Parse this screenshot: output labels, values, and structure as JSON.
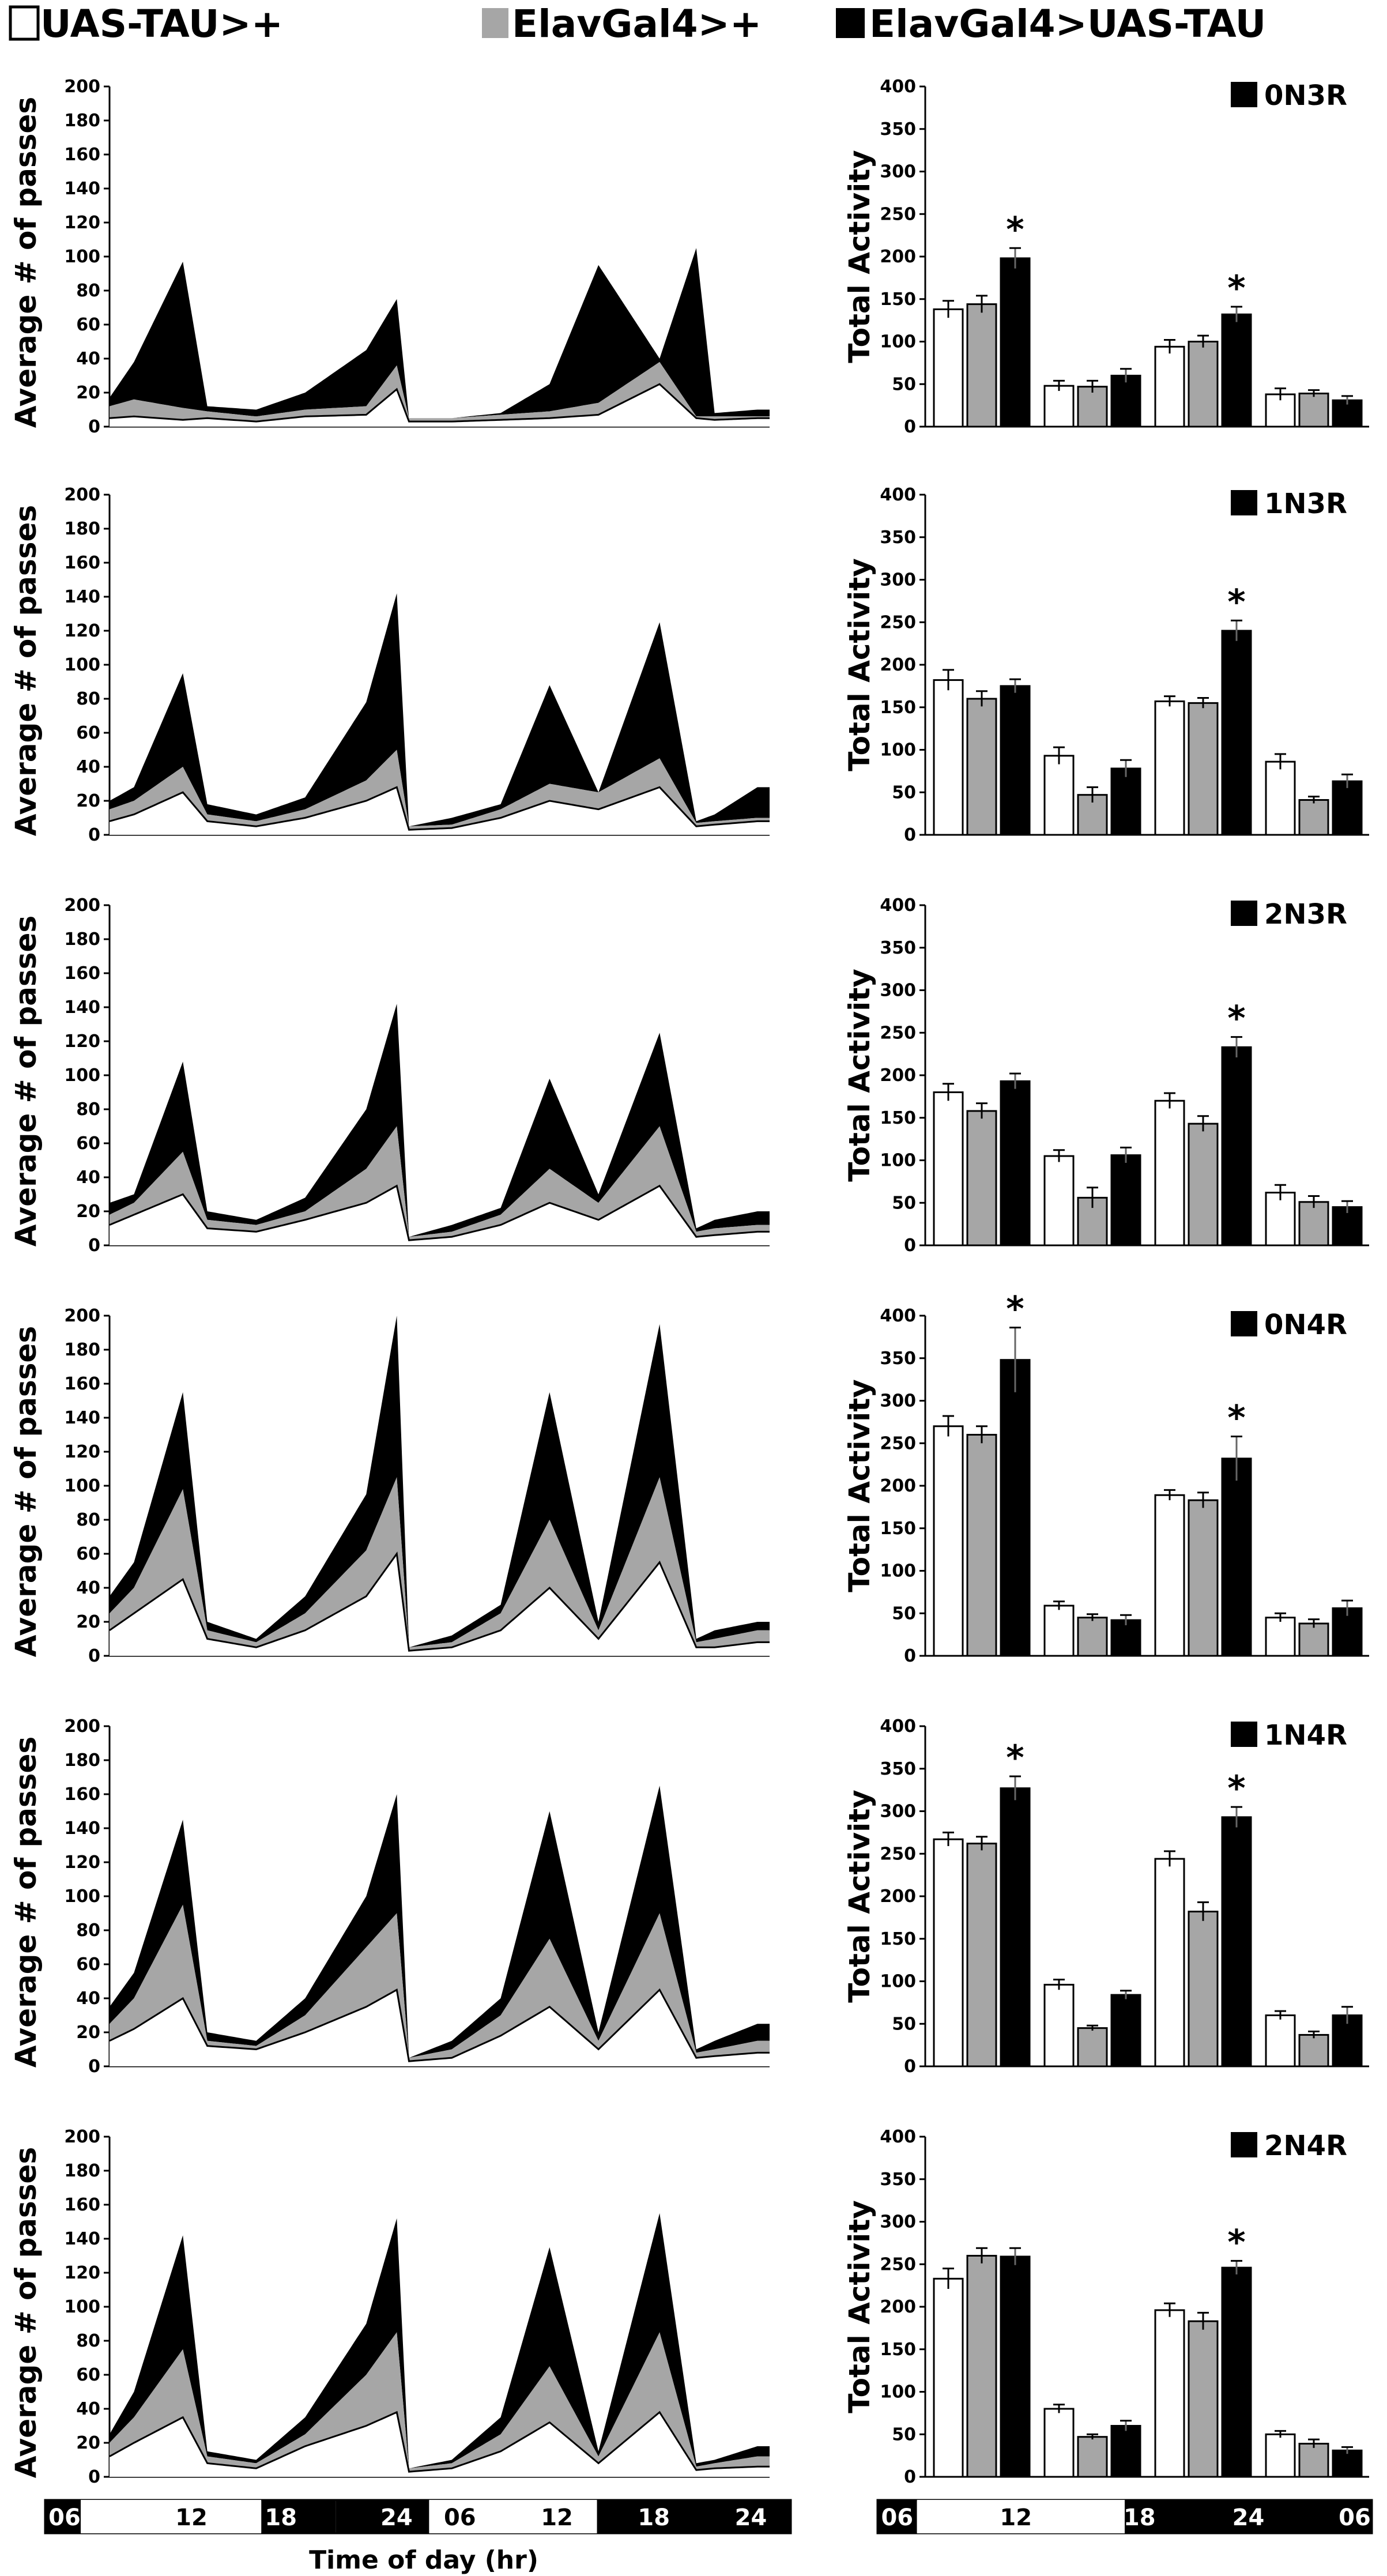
{
  "legend": {
    "items": [
      {
        "label": "UAS-TAU>+",
        "color": "#ffffff"
      },
      {
        "label": "ElavGal4>+",
        "color": "#a6a6a6"
      },
      {
        "label": "ElavGal4>UAS-TAU",
        "color": "#000000"
      }
    ]
  },
  "line_yaxis_title": "Average # of passes",
  "bar_yaxis_title": "Total Activity",
  "line_xaxis_title": "Time of day (hr)",
  "line_time_labels": [
    "06",
    "12",
    "18",
    "24",
    "06",
    "12",
    "18",
    "24"
  ],
  "bar_time_labels": [
    "06",
    "12",
    "18",
    "24",
    "06"
  ],
  "line_yticks": [
    0,
    20,
    40,
    60,
    80,
    100,
    120,
    140,
    160,
    180,
    200
  ],
  "bar_yticks": [
    0,
    50,
    100,
    150,
    200,
    250,
    300,
    350,
    400
  ],
  "colors": {
    "white_fill": "#ffffff",
    "gray_fill": "#a6a6a6",
    "black_fill": "#000000"
  },
  "chart_data": [
    {
      "panel": "0N3R",
      "line": {
        "type": "area",
        "ylim": [
          0,
          200
        ],
        "xlim": [
          6,
          54
        ],
        "ylabel": "Average # of passes",
        "baseline": [
          5,
          6,
          4,
          5,
          3,
          6,
          7,
          22,
          3,
          3,
          4,
          5,
          7,
          25,
          5,
          4,
          5
        ],
        "gray_top": [
          12,
          16,
          11,
          9,
          6,
          10,
          12,
          36,
          5,
          5,
          7,
          9,
          14,
          38,
          6,
          6,
          6
        ],
        "black_top": [
          17,
          38,
          97,
          12,
          10,
          20,
          45,
          75,
          5,
          5,
          8,
          25,
          95,
          40,
          105,
          8,
          10
        ]
      },
      "bar": {
        "type": "bar",
        "categories": [
          "day",
          "night",
          "day",
          "night"
        ],
        "ylim": [
          0,
          400
        ],
        "ylabel": "Total Activity",
        "series": [
          {
            "name": "UAS-TAU>+",
            "values": [
              138,
              48,
              94,
              38
            ],
            "errors": [
              10,
              6,
              8,
              7
            ]
          },
          {
            "name": "ElavGal4>+",
            "values": [
              144,
              47,
              100,
              39
            ],
            "errors": [
              10,
              7,
              7,
              4
            ]
          },
          {
            "name": "ElavGal4>UAS-TAU",
            "values": [
              198,
              60,
              132,
              31
            ],
            "errors": [
              12,
              8,
              9,
              5
            ]
          }
        ],
        "significance": [
          [
            false,
            false,
            true
          ],
          [
            false,
            false,
            false
          ],
          [
            false,
            false,
            true
          ],
          [
            false,
            false,
            false
          ]
        ]
      }
    },
    {
      "panel": "1N3R",
      "line": {
        "type": "area",
        "ylim": [
          0,
          200
        ],
        "xlim": [
          6,
          54
        ],
        "ylabel": "Average # of passes",
        "baseline": [
          8,
          12,
          25,
          8,
          5,
          10,
          20,
          28,
          3,
          4,
          10,
          20,
          15,
          28,
          5,
          6,
          8
        ],
        "gray_top": [
          15,
          20,
          40,
          12,
          8,
          15,
          32,
          50,
          5,
          6,
          15,
          30,
          25,
          45,
          7,
          8,
          10
        ],
        "black_top": [
          20,
          28,
          95,
          18,
          12,
          22,
          78,
          142,
          5,
          10,
          18,
          88,
          25,
          125,
          8,
          12,
          28
        ]
      },
      "bar": {
        "type": "bar",
        "categories": [
          "day",
          "night",
          "day",
          "night"
        ],
        "ylim": [
          0,
          400
        ],
        "ylabel": "Total Activity",
        "series": [
          {
            "name": "UAS-TAU>+",
            "values": [
              182,
              93,
              157,
              86
            ],
            "errors": [
              12,
              10,
              6,
              9
            ]
          },
          {
            "name": "ElavGal4>+",
            "values": [
              160,
              47,
              155,
              41
            ],
            "errors": [
              9,
              9,
              6,
              4
            ]
          },
          {
            "name": "ElavGal4>UAS-TAU",
            "values": [
              175,
              78,
              240,
              63
            ],
            "errors": [
              8,
              10,
              12,
              8
            ]
          }
        ],
        "significance": [
          [
            false,
            false,
            false
          ],
          [
            false,
            false,
            false
          ],
          [
            false,
            false,
            true
          ],
          [
            false,
            false,
            false
          ]
        ]
      }
    },
    {
      "panel": "2N3R",
      "line": {
        "type": "area",
        "ylim": [
          0,
          200
        ],
        "xlim": [
          6,
          54
        ],
        "ylabel": "Average # of passes",
        "baseline": [
          12,
          18,
          30,
          10,
          8,
          15,
          25,
          35,
          3,
          5,
          12,
          25,
          15,
          35,
          5,
          6,
          8
        ],
        "gray_top": [
          18,
          25,
          55,
          15,
          12,
          20,
          45,
          70,
          5,
          8,
          18,
          45,
          25,
          70,
          8,
          10,
          12
        ],
        "black_top": [
          25,
          30,
          108,
          20,
          15,
          28,
          80,
          142,
          5,
          12,
          22,
          98,
          30,
          125,
          10,
          15,
          20
        ]
      },
      "bar": {
        "type": "bar",
        "categories": [
          "day",
          "night",
          "day",
          "night"
        ],
        "ylim": [
          0,
          400
        ],
        "ylabel": "Total Activity",
        "series": [
          {
            "name": "UAS-TAU>+",
            "values": [
              180,
              105,
              170,
              62
            ],
            "errors": [
              10,
              7,
              9,
              9
            ]
          },
          {
            "name": "ElavGal4>+",
            "values": [
              158,
              56,
              143,
              51
            ],
            "errors": [
              9,
              12,
              9,
              7
            ]
          },
          {
            "name": "ElavGal4>UAS-TAU",
            "values": [
              193,
              106,
              233,
              45
            ],
            "errors": [
              9,
              9,
              12,
              7
            ]
          }
        ],
        "significance": [
          [
            false,
            false,
            false
          ],
          [
            false,
            false,
            false
          ],
          [
            false,
            false,
            true
          ],
          [
            false,
            false,
            false
          ]
        ]
      }
    },
    {
      "panel": "0N4R",
      "line": {
        "type": "area",
        "ylim": [
          0,
          200
        ],
        "xlim": [
          6,
          54
        ],
        "ylabel": "Average # of passes",
        "baseline": [
          15,
          25,
          45,
          10,
          5,
          15,
          35,
          60,
          3,
          5,
          15,
          40,
          10,
          55,
          5,
          5,
          8
        ],
        "gray_top": [
          25,
          40,
          98,
          15,
          8,
          25,
          62,
          105,
          5,
          8,
          25,
          80,
          15,
          105,
          8,
          10,
          15
        ],
        "black_top": [
          35,
          55,
          155,
          20,
          10,
          35,
          95,
          200,
          5,
          12,
          30,
          155,
          20,
          195,
          10,
          15,
          20
        ]
      },
      "bar": {
        "type": "bar",
        "categories": [
          "day",
          "night",
          "day",
          "night"
        ],
        "ylim": [
          0,
          400
        ],
        "ylabel": "Total Activity",
        "series": [
          {
            "name": "UAS-TAU>+",
            "values": [
              270,
              59,
              189,
              45
            ],
            "errors": [
              12,
              5,
              6,
              5
            ]
          },
          {
            "name": "ElavGal4>+",
            "values": [
              260,
              45,
              183,
              38
            ],
            "errors": [
              10,
              4,
              9,
              5
            ]
          },
          {
            "name": "ElavGal4>UAS-TAU",
            "values": [
              348,
              42,
              232,
              56
            ],
            "errors": [
              38,
              6,
              26,
              9
            ]
          }
        ],
        "significance": [
          [
            false,
            false,
            true
          ],
          [
            false,
            false,
            false
          ],
          [
            false,
            false,
            true
          ],
          [
            false,
            false,
            false
          ]
        ]
      }
    },
    {
      "panel": "1N4R",
      "line": {
        "type": "area",
        "ylim": [
          0,
          200
        ],
        "xlim": [
          6,
          54
        ],
        "ylabel": "Average # of passes",
        "baseline": [
          15,
          22,
          40,
          12,
          10,
          20,
          35,
          45,
          3,
          5,
          18,
          35,
          10,
          45,
          5,
          6,
          8
        ],
        "gray_top": [
          25,
          40,
          95,
          15,
          12,
          30,
          70,
          90,
          5,
          10,
          30,
          75,
          15,
          90,
          8,
          10,
          15
        ],
        "black_top": [
          35,
          55,
          145,
          20,
          15,
          40,
          100,
          160,
          5,
          15,
          40,
          150,
          20,
          165,
          10,
          15,
          25
        ]
      },
      "bar": {
        "type": "bar",
        "categories": [
          "day",
          "night",
          "day",
          "night"
        ],
        "ylim": [
          0,
          400
        ],
        "ylabel": "Total Activity",
        "series": [
          {
            "name": "UAS-TAU>+",
            "values": [
              267,
              96,
              244,
              60
            ],
            "errors": [
              8,
              6,
              9,
              5
            ]
          },
          {
            "name": "ElavGal4>+",
            "values": [
              262,
              45,
              182,
              37
            ],
            "errors": [
              8,
              3,
              11,
              4
            ]
          },
          {
            "name": "ElavGal4>UAS-TAU",
            "values": [
              327,
              84,
              293,
              60
            ],
            "errors": [
              14,
              5,
              12,
              10
            ]
          }
        ],
        "significance": [
          [
            false,
            false,
            true
          ],
          [
            false,
            false,
            false
          ],
          [
            false,
            false,
            true
          ],
          [
            false,
            false,
            false
          ]
        ]
      }
    },
    {
      "panel": "2N4R",
      "line": {
        "type": "area",
        "ylim": [
          0,
          200
        ],
        "xlim": [
          6,
          54
        ],
        "ylabel": "Average # of passes",
        "baseline": [
          12,
          20,
          35,
          8,
          5,
          18,
          30,
          38,
          3,
          5,
          15,
          32,
          8,
          38,
          4,
          5,
          6
        ],
        "gray_top": [
          20,
          35,
          75,
          12,
          8,
          25,
          60,
          85,
          5,
          8,
          25,
          65,
          12,
          85,
          6,
          8,
          12
        ],
        "black_top": [
          25,
          50,
          142,
          15,
          10,
          35,
          90,
          152,
          5,
          10,
          35,
          135,
          15,
          155,
          8,
          10,
          18
        ]
      },
      "bar": {
        "type": "bar",
        "categories": [
          "day",
          "night",
          "day",
          "night"
        ],
        "ylim": [
          0,
          400
        ],
        "ylabel": "Total Activity",
        "series": [
          {
            "name": "UAS-TAU>+",
            "values": [
              233,
              80,
              196,
              50
            ],
            "errors": [
              12,
              5,
              8,
              4
            ]
          },
          {
            "name": "ElavGal4>+",
            "values": [
              260,
              47,
              183,
              39
            ],
            "errors": [
              9,
              3,
              10,
              5
            ]
          },
          {
            "name": "ElavGal4>UAS-TAU",
            "values": [
              259,
              60,
              246,
              31
            ],
            "errors": [
              10,
              6,
              8,
              4
            ]
          }
        ],
        "significance": [
          [
            false,
            false,
            false
          ],
          [
            false,
            false,
            false
          ],
          [
            false,
            false,
            true
          ],
          [
            false,
            false,
            false
          ]
        ]
      }
    }
  ]
}
